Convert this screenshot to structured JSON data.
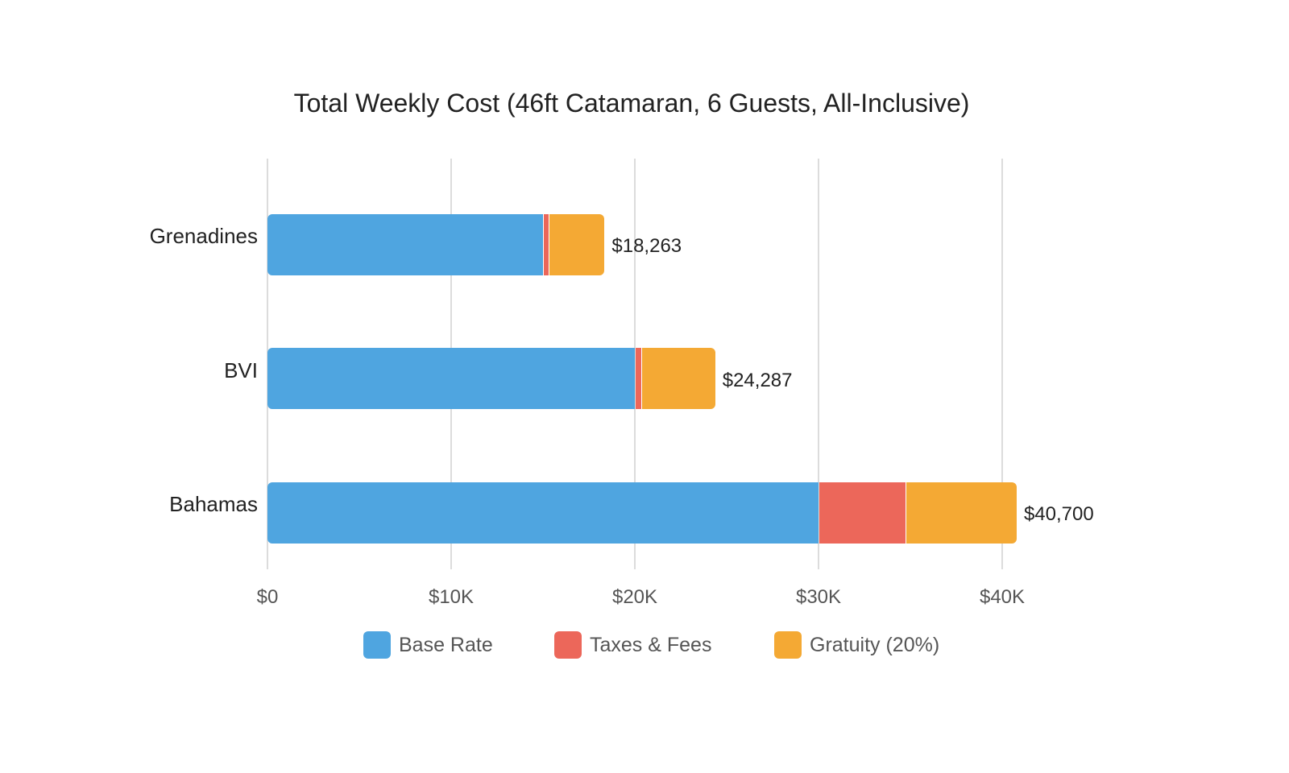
{
  "chart_data": {
    "type": "bar",
    "orientation": "horizontal",
    "stacked": true,
    "title": "Total Weekly Cost (46ft Catamaran, 6 Guests, All-Inclusive)",
    "xlabel": "",
    "ylabel": "",
    "xlim": [
      0,
      40000
    ],
    "x_ticks": [
      "$0",
      "$10K",
      "$20K",
      "$30K",
      "$40K"
    ],
    "grid": true,
    "legend_position": "bottom",
    "categories": [
      "Grenadines",
      "BVI",
      "Bahamas"
    ],
    "series": [
      {
        "name": "Base Rate",
        "color": "#4fa5e0",
        "values": [
          15000,
          20000,
          30000
        ]
      },
      {
        "name": "Taxes & Fees",
        "color": "#ec675a",
        "values": [
          263,
          287,
          4700
        ]
      },
      {
        "name": "Gratuity (20%)",
        "color": "#f4a934",
        "values": [
          3000,
          4000,
          6000
        ]
      }
    ],
    "totals": [
      18263,
      24287,
      40700
    ],
    "total_labels": [
      "$18,263",
      "$24,287",
      "$40,700"
    ]
  }
}
